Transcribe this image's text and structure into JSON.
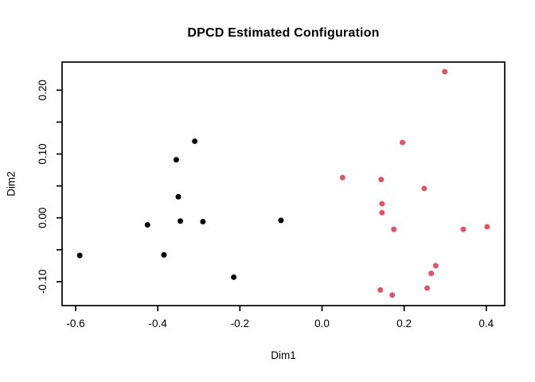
{
  "chart_data": {
    "type": "scatter",
    "title": "DPCD Estimated Configuration",
    "xlabel": "Dim1",
    "ylabel": "Dim2",
    "xlim": [
      -0.633,
      0.445
    ],
    "ylim": [
      -0.1375,
      0.244
    ],
    "grid": false,
    "legend": "none",
    "marker": "filled-circle",
    "marker_diameter_px": 7,
    "axis_color": "#000000",
    "background_color": "#ffffff",
    "x_ticks": {
      "values": [
        -0.6,
        -0.4,
        -0.2,
        0.0,
        0.2,
        0.4
      ],
      "labels": [
        "-0.6",
        "-0.4",
        "-0.2",
        "0.0",
        "0.2",
        "0.4"
      ]
    },
    "y_ticks": {
      "values": [
        -0.1,
        -0.05,
        0.0,
        0.05,
        0.1,
        0.15,
        0.2
      ],
      "labels": [
        "-0.10",
        "",
        "0.00",
        "",
        "0.10",
        "",
        "0.20"
      ]
    },
    "series": [
      {
        "name": "black-group",
        "color": "#000000",
        "points": [
          [
            -0.59,
            -0.059
          ],
          [
            -0.425,
            -0.011
          ],
          [
            -0.385,
            -0.058
          ],
          [
            -0.355,
            0.091
          ],
          [
            -0.35,
            0.033
          ],
          [
            -0.345,
            -0.005
          ],
          [
            -0.31,
            0.12
          ],
          [
            -0.29,
            -0.006
          ],
          [
            -0.215,
            -0.093
          ],
          [
            -0.1,
            -0.004
          ]
        ]
      },
      {
        "name": "rose-group",
        "color": "#DF536B",
        "points": [
          [
            0.05,
            0.063
          ],
          [
            0.142,
            -0.113
          ],
          [
            0.144,
            0.06
          ],
          [
            0.146,
            0.022
          ],
          [
            0.146,
            0.008
          ],
          [
            0.171,
            -0.121
          ],
          [
            0.175,
            -0.018
          ],
          [
            0.196,
            0.118
          ],
          [
            0.249,
            0.046
          ],
          [
            0.256,
            -0.11
          ],
          [
            0.266,
            -0.087
          ],
          [
            0.277,
            -0.075
          ],
          [
            0.299,
            0.229
          ],
          [
            0.344,
            -0.018
          ],
          [
            0.402,
            -0.014
          ]
        ]
      }
    ]
  }
}
